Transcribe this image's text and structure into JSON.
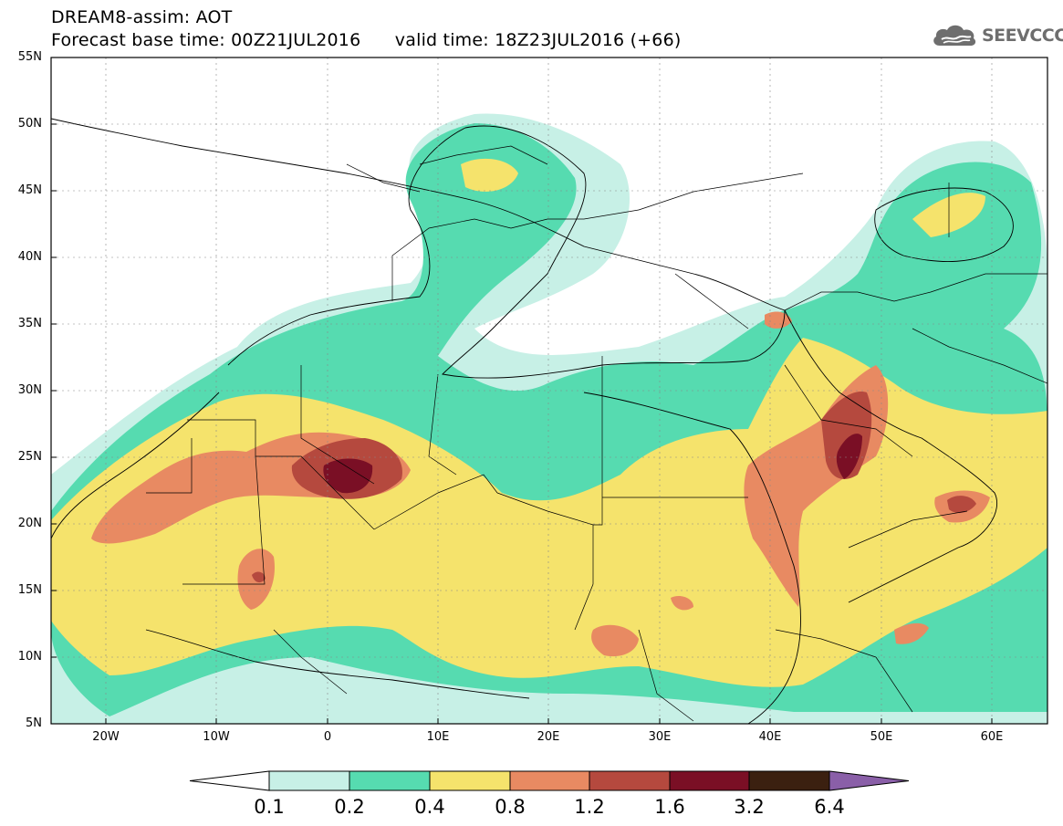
{
  "title": {
    "line1": "DREAM8-assim: AOT",
    "line2_base": "Forecast base time: 00Z21JUL2016",
    "line2_valid": "valid time: 18Z23JUL2016 (+66)"
  },
  "logo": {
    "text": "SEEVCCC",
    "icon": "cloud-icon"
  },
  "axes": {
    "lat_labels": [
      "55N",
      "50N",
      "45N",
      "40N",
      "35N",
      "30N",
      "25N",
      "20N",
      "15N",
      "10N",
      "5N"
    ],
    "lon_labels": [
      "20W",
      "10W",
      "0",
      "10E",
      "20E",
      "30E",
      "40E",
      "50E",
      "60E"
    ]
  },
  "colorbar": {
    "labels": [
      "0.1",
      "0.2",
      "0.4",
      "0.8",
      "1.2",
      "1.6",
      "3.2",
      "6.4"
    ],
    "colors": [
      "#ffffff",
      "#c7f0e6",
      "#56dbb0",
      "#f5e36c",
      "#e88a62",
      "#b5493e",
      "#7a0f25",
      "#3b2010",
      "#8a5fa8"
    ]
  }
}
